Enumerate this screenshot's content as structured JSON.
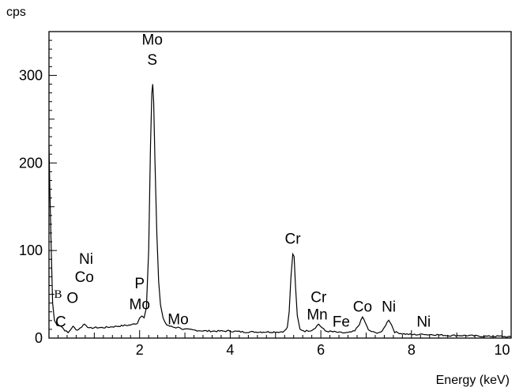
{
  "chart_data": {
    "type": "line",
    "title": "",
    "ylabel": "cps",
    "xlabel": "Energy (keV)",
    "xlim": [
      0,
      10.2
    ],
    "ylim": [
      0,
      350
    ],
    "x_ticks": [
      2,
      4,
      6,
      8,
      10
    ],
    "x_tick_labels": [
      "2",
      "4",
      "6",
      "8",
      "10"
    ],
    "y_ticks": [
      0,
      100,
      200,
      300
    ],
    "y_tick_labels": [
      "0",
      "100",
      "200",
      "300"
    ],
    "grid": false,
    "series": [
      {
        "points": [
          [
            0.0,
            220
          ],
          [
            0.02,
            170
          ],
          [
            0.05,
            100
          ],
          [
            0.08,
            40
          ],
          [
            0.12,
            20
          ],
          [
            0.18,
            15
          ],
          [
            0.25,
            14
          ],
          [
            0.3,
            12
          ],
          [
            0.35,
            9
          ],
          [
            0.42,
            6
          ],
          [
            0.48,
            10
          ],
          [
            0.53,
            13
          ],
          [
            0.56,
            12
          ],
          [
            0.62,
            9
          ],
          [
            0.68,
            11
          ],
          [
            0.72,
            13
          ],
          [
            0.78,
            16
          ],
          [
            0.82,
            15
          ],
          [
            0.88,
            11
          ],
          [
            1.0,
            12
          ],
          [
            1.2,
            12
          ],
          [
            1.4,
            13
          ],
          [
            1.6,
            14
          ],
          [
            1.8,
            15
          ],
          [
            1.95,
            17
          ],
          [
            2.0,
            23
          ],
          [
            2.05,
            26
          ],
          [
            2.1,
            24
          ],
          [
            2.15,
            35
          ],
          [
            2.2,
            100
          ],
          [
            2.24,
            220
          ],
          [
            2.27,
            280
          ],
          [
            2.29,
            290
          ],
          [
            2.31,
            270
          ],
          [
            2.34,
            200
          ],
          [
            2.38,
            120
          ],
          [
            2.42,
            65
          ],
          [
            2.46,
            38
          ],
          [
            2.52,
            22
          ],
          [
            2.6,
            15
          ],
          [
            2.7,
            13
          ],
          [
            2.8,
            12
          ],
          [
            2.85,
            13
          ],
          [
            2.9,
            11
          ],
          [
            3.0,
            10
          ],
          [
            3.2,
            9
          ],
          [
            3.5,
            8
          ],
          [
            3.8,
            8
          ],
          [
            4.0,
            8
          ],
          [
            4.3,
            7
          ],
          [
            4.6,
            7
          ],
          [
            4.9,
            7
          ],
          [
            5.1,
            7
          ],
          [
            5.2,
            8
          ],
          [
            5.26,
            12
          ],
          [
            5.3,
            30
          ],
          [
            5.34,
            70
          ],
          [
            5.38,
            96
          ],
          [
            5.41,
            93
          ],
          [
            5.44,
            60
          ],
          [
            5.48,
            25
          ],
          [
            5.54,
            10
          ],
          [
            5.65,
            8
          ],
          [
            5.8,
            9
          ],
          [
            5.88,
            12
          ],
          [
            5.95,
            16
          ],
          [
            6.02,
            12
          ],
          [
            6.1,
            8
          ],
          [
            6.3,
            7
          ],
          [
            6.45,
            6
          ],
          [
            6.6,
            6
          ],
          [
            6.75,
            8
          ],
          [
            6.85,
            16
          ],
          [
            6.92,
            24
          ],
          [
            6.98,
            18
          ],
          [
            7.05,
            9
          ],
          [
            7.2,
            6
          ],
          [
            7.35,
            7
          ],
          [
            7.43,
            15
          ],
          [
            7.5,
            21
          ],
          [
            7.56,
            15
          ],
          [
            7.63,
            7
          ],
          [
            7.8,
            5
          ],
          [
            8.0,
            4
          ],
          [
            8.2,
            4
          ],
          [
            8.26,
            5
          ],
          [
            8.32,
            4
          ],
          [
            8.5,
            4
          ],
          [
            8.8,
            3
          ],
          [
            9.2,
            3
          ],
          [
            9.6,
            2
          ],
          [
            10.0,
            2
          ],
          [
            10.2,
            1
          ]
        ]
      }
    ],
    "annotations": [
      {
        "text": "Mo",
        "x": 2.28,
        "y": 335
      },
      {
        "text": "S",
        "x": 2.28,
        "y": 312
      },
      {
        "text": "Cr",
        "x": 5.38,
        "y": 108
      },
      {
        "text": "Ni",
        "x": 0.82,
        "y": 85
      },
      {
        "text": "Co",
        "x": 0.78,
        "y": 64
      },
      {
        "text": "B",
        "x": 0.2,
        "y": 46
      },
      {
        "text": "O",
        "x": 0.52,
        "y": 40
      },
      {
        "text": "P",
        "x": 0.02,
        "y": 57,
        "anchor_x": 2.0
      },
      {
        "text": "Mo",
        "x": 2.0,
        "y": 33
      },
      {
        "text": "C",
        "x": 0.26,
        "y": 13
      },
      {
        "text": "Mo",
        "x": 2.85,
        "y": 16
      },
      {
        "text": "Cr",
        "x": 5.95,
        "y": 41
      },
      {
        "text": "Mn",
        "x": 5.92,
        "y": 21
      },
      {
        "text": "Fe",
        "x": 6.45,
        "y": 13
      },
      {
        "text": "Co",
        "x": 6.92,
        "y": 30
      },
      {
        "text": "Ni",
        "x": 7.5,
        "y": 30
      },
      {
        "text": "Ni",
        "x": 8.27,
        "y": 13
      }
    ]
  }
}
